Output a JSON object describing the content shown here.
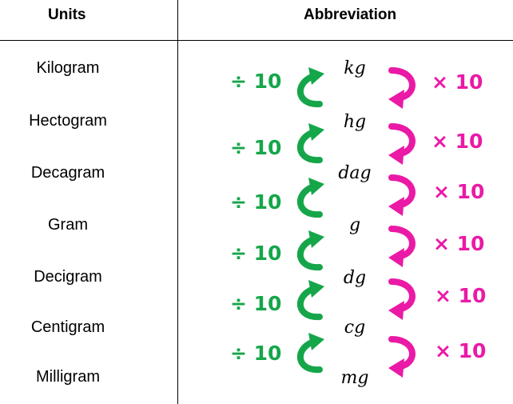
{
  "header": {
    "units_label": "Units",
    "abbreviation_label": "Abbreviation"
  },
  "rows": [
    {
      "unit": "Kilogram",
      "abbr": "kg"
    },
    {
      "unit": "Hectogram",
      "abbr": "hg"
    },
    {
      "unit": "Decagram",
      "abbr": "dag"
    },
    {
      "unit": "Gram",
      "abbr": "g"
    },
    {
      "unit": "Decigram",
      "abbr": "dg"
    },
    {
      "unit": "Centigram",
      "abbr": "cg"
    },
    {
      "unit": "Milligram",
      "abbr": "mg"
    }
  ],
  "conversions": [
    {
      "divide": "÷ 10",
      "multiply": "× 10"
    },
    {
      "divide": "÷ 10",
      "multiply": "× 10"
    },
    {
      "divide": "÷ 10",
      "multiply": "× 10"
    },
    {
      "divide": "÷ 10",
      "multiply": "× 10"
    },
    {
      "divide": "÷ 10",
      "multiply": "× 10"
    },
    {
      "divide": "÷ 10",
      "multiply": "× 10"
    }
  ],
  "colors": {
    "divide_arrow": "#15a64a",
    "multiply_arrow": "#ea1aa6",
    "text": "#000000"
  }
}
